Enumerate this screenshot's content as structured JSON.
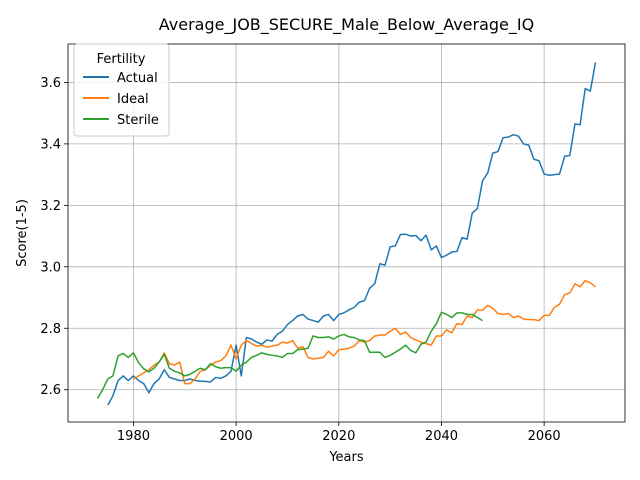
{
  "chart_data": {
    "type": "line",
    "title": "Average_JOB_SECURE_Male_Below_Average_IQ",
    "xlabel": "Years",
    "ylabel": "Score(1-5)",
    "xlim": [
      1967.25,
      2075.75
    ],
    "ylim": [
      2.495,
      3.725
    ],
    "xticks": [
      1980,
      2000,
      2020,
      2040,
      2060
    ],
    "yticks": [
      2.6,
      2.8,
      3.0,
      3.2,
      3.4,
      3.6
    ],
    "ytick_labels": [
      "2.6",
      "2.8",
      "3.0",
      "3.2",
      "3.4",
      "3.6"
    ],
    "grid": true,
    "legend": {
      "title": "Fertility",
      "placement": "top-left"
    },
    "series": [
      {
        "name": "Actual",
        "color": "#1f77b4",
        "x": [
          1975,
          1976,
          1977,
          1978,
          1979,
          1980,
          1981,
          1982,
          1983,
          1984,
          1985,
          1986,
          1987,
          1988,
          1989,
          1990,
          1991,
          1992,
          1993,
          1994,
          1995,
          1996,
          1997,
          1998,
          1999,
          2000,
          2001,
          2002,
          2003,
          2004,
          2005,
          2006,
          2007,
          2008,
          2009,
          2010,
          2011,
          2012,
          2013,
          2014,
          2015,
          2016,
          2017,
          2018,
          2019,
          2020,
          2021,
          2022,
          2023,
          2024,
          2025,
          2026,
          2027,
          2028,
          2029,
          2030,
          2031,
          2032,
          2033,
          2034,
          2035,
          2036,
          2037,
          2038,
          2039,
          2040,
          2041,
          2042,
          2043,
          2044,
          2045,
          2046,
          2047,
          2048,
          2049,
          2050,
          2051,
          2052,
          2053,
          2054,
          2055,
          2056,
          2057,
          2058,
          2059,
          2060,
          2061,
          2062,
          2063,
          2064,
          2065,
          2066,
          2067,
          2068,
          2069,
          2070
        ],
        "y": [
          2.55,
          2.58,
          2.63,
          2.645,
          2.63,
          2.645,
          2.63,
          2.62,
          2.59,
          2.62,
          2.635,
          2.665,
          2.64,
          2.635,
          2.63,
          2.63,
          2.635,
          2.63,
          2.628,
          2.627,
          2.625,
          2.64,
          2.637,
          2.645,
          2.66,
          2.745,
          2.645,
          2.77,
          2.765,
          2.755,
          2.748,
          2.762,
          2.758,
          2.78,
          2.79,
          2.812,
          2.825,
          2.84,
          2.845,
          2.83,
          2.825,
          2.82,
          2.84,
          2.845,
          2.825,
          2.845,
          2.85,
          2.86,
          2.868,
          2.885,
          2.89,
          2.93,
          2.945,
          3.01,
          3.005,
          3.065,
          3.068,
          3.105,
          3.106,
          3.1,
          3.102,
          3.085,
          3.103,
          3.055,
          3.068,
          3.03,
          3.038,
          3.048,
          3.05,
          3.095,
          3.09,
          3.175,
          3.19,
          3.28,
          3.305,
          3.37,
          3.375,
          3.42,
          3.422,
          3.43,
          3.425,
          3.4,
          3.396,
          3.35,
          3.345,
          3.302,
          3.298,
          3.3,
          3.302,
          3.36,
          3.362,
          3.465,
          3.462,
          3.58,
          3.572,
          3.665
        ]
      },
      {
        "name": "Ideal",
        "color": "#ff7f0e",
        "x": [
          1980,
          1981,
          1982,
          1983,
          1984,
          1985,
          1986,
          1987,
          1988,
          1989,
          1990,
          1991,
          1992,
          1993,
          1994,
          1995,
          1996,
          1997,
          1998,
          1999,
          2000,
          2001,
          2002,
          2003,
          2004,
          2005,
          2006,
          2007,
          2008,
          2009,
          2010,
          2011,
          2012,
          2013,
          2014,
          2015,
          2016,
          2017,
          2018,
          2019,
          2020,
          2021,
          2022,
          2023,
          2024,
          2025,
          2026,
          2027,
          2028,
          2029,
          2030,
          2031,
          2032,
          2033,
          2034,
          2035,
          2036,
          2037,
          2038,
          2039,
          2040,
          2041,
          2042,
          2043,
          2044,
          2045,
          2046,
          2047,
          2048,
          2049,
          2050,
          2051,
          2052,
          2053,
          2054,
          2055,
          2056,
          2057,
          2058,
          2059,
          2060,
          2061,
          2062,
          2063,
          2064,
          2065,
          2066,
          2067,
          2068,
          2069,
          2070
        ],
        "y": [
          2.635,
          2.645,
          2.655,
          2.665,
          2.68,
          2.69,
          2.72,
          2.685,
          2.68,
          2.69,
          2.62,
          2.62,
          2.635,
          2.66,
          2.665,
          2.68,
          2.69,
          2.695,
          2.71,
          2.745,
          2.7,
          2.745,
          2.76,
          2.75,
          2.742,
          2.745,
          2.738,
          2.742,
          2.745,
          2.755,
          2.752,
          2.76,
          2.735,
          2.74,
          2.705,
          2.7,
          2.703,
          2.705,
          2.725,
          2.71,
          2.73,
          2.732,
          2.735,
          2.742,
          2.76,
          2.755,
          2.76,
          2.775,
          2.778,
          2.778,
          2.79,
          2.8,
          2.78,
          2.788,
          2.77,
          2.762,
          2.755,
          2.75,
          2.745,
          2.775,
          2.775,
          2.795,
          2.785,
          2.815,
          2.812,
          2.84,
          2.835,
          2.86,
          2.858,
          2.875,
          2.865,
          2.848,
          2.845,
          2.848,
          2.835,
          2.84,
          2.83,
          2.828,
          2.828,
          2.825,
          2.842,
          2.842,
          2.868,
          2.878,
          2.91,
          2.915,
          2.945,
          2.935,
          2.955,
          2.948,
          2.935
        ]
      },
      {
        "name": "Sterile",
        "color": "#2ca02c",
        "x": [
          1973,
          1974,
          1975,
          1976,
          1977,
          1978,
          1979,
          1980,
          1981,
          1982,
          1983,
          1984,
          1985,
          1986,
          1987,
          1988,
          1989,
          1990,
          1991,
          1992,
          1993,
          1994,
          1995,
          1996,
          1997,
          1998,
          1999,
          2000,
          2001,
          2002,
          2003,
          2004,
          2005,
          2006,
          2007,
          2008,
          2009,
          2010,
          2011,
          2012,
          2013,
          2014,
          2015,
          2016,
          2017,
          2018,
          2019,
          2020,
          2021,
          2022,
          2023,
          2024,
          2025,
          2026,
          2027,
          2028,
          2029,
          2030,
          2031,
          2032,
          2033,
          2034,
          2035,
          2036,
          2037,
          2038,
          2039,
          2040,
          2041,
          2042,
          2043,
          2044,
          2045,
          2046,
          2047,
          2048
        ],
        "y": [
          2.572,
          2.6,
          2.635,
          2.645,
          2.71,
          2.718,
          2.705,
          2.72,
          2.688,
          2.668,
          2.658,
          2.67,
          2.69,
          2.715,
          2.67,
          2.66,
          2.655,
          2.645,
          2.65,
          2.66,
          2.67,
          2.665,
          2.685,
          2.675,
          2.67,
          2.672,
          2.672,
          2.66,
          2.68,
          2.69,
          2.705,
          2.712,
          2.72,
          2.715,
          2.712,
          2.71,
          2.705,
          2.718,
          2.718,
          2.73,
          2.732,
          2.735,
          2.775,
          2.77,
          2.77,
          2.772,
          2.765,
          2.775,
          2.78,
          2.772,
          2.77,
          2.762,
          2.76,
          2.722,
          2.722,
          2.722,
          2.705,
          2.712,
          2.722,
          2.732,
          2.745,
          2.728,
          2.72,
          2.748,
          2.755,
          2.79,
          2.815,
          2.852,
          2.845,
          2.835,
          2.85,
          2.85,
          2.845,
          2.845,
          2.835,
          2.825
        ]
      }
    ]
  }
}
